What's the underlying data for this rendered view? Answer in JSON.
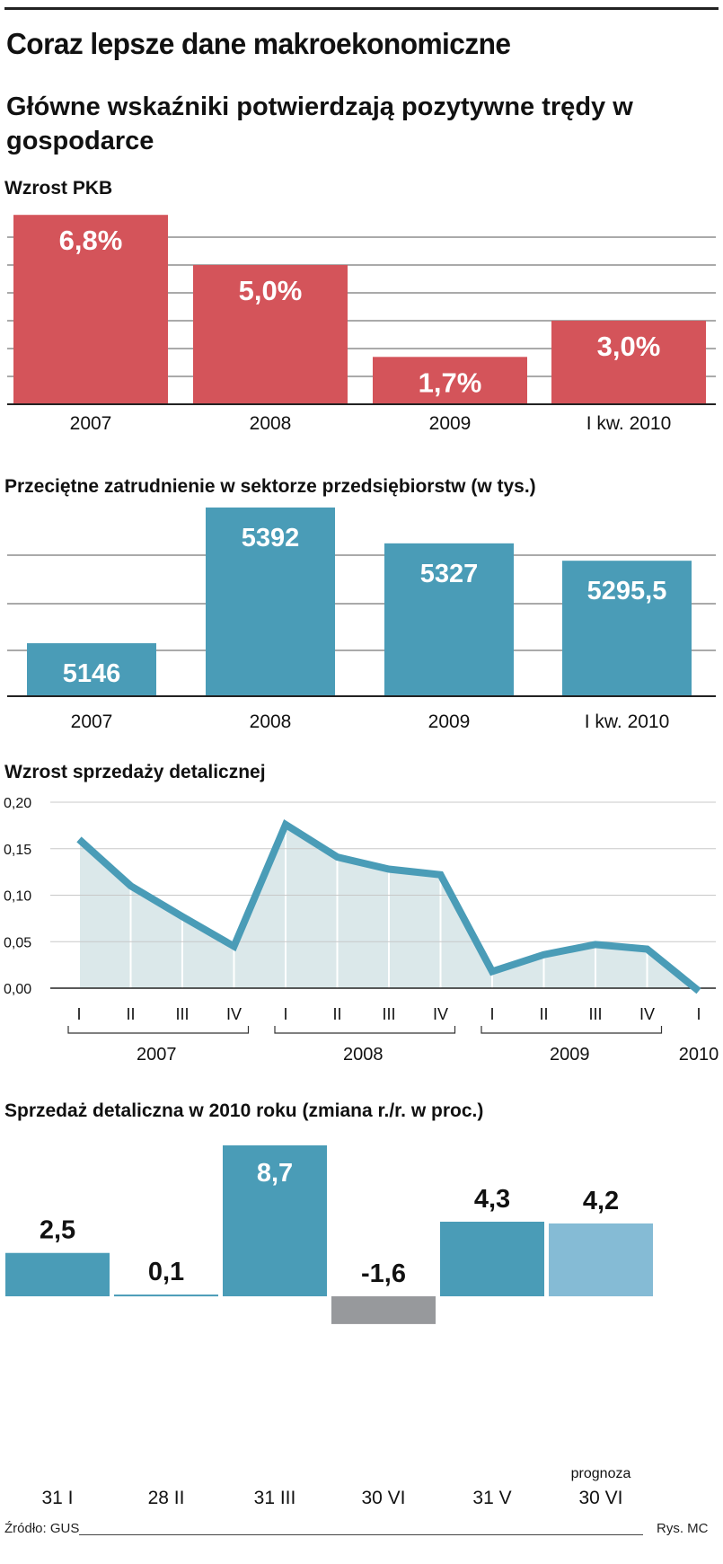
{
  "title": "Coraz lepsze dane makroekonomiczne",
  "subtitle": "Główne wskaźniki potwierdzają pozytywne trędy w gospodarce",
  "source": "Źródło: GUS",
  "credit": "Rys. MC",
  "colors": {
    "red": "#d4545a",
    "teal": "#4a9cb7",
    "light_blue": "#85bbd5",
    "gray": "#97999c",
    "area_fill": "#dbe8ea"
  },
  "chart_data": [
    {
      "type": "bar",
      "title": "Wzrost PKB",
      "categories": [
        "2007",
        "2008",
        "2009",
        "I kw. 2010"
      ],
      "values": [
        6.8,
        5.0,
        1.7,
        3.0
      ],
      "labels": [
        "6,8%",
        "5,0%",
        "1,7%",
        "3,0%"
      ],
      "ylim": [
        0,
        7
      ],
      "grid": true
    },
    {
      "type": "bar",
      "title": "Przeciętne zatrudnienie w sektorze przedsiębiorstw (w tys.)",
      "categories": [
        "2007",
        "2008",
        "2009",
        "I kw. 2010"
      ],
      "values": [
        5146,
        5392,
        5327,
        5295.5
      ],
      "labels": [
        "5146",
        "5392",
        "5327",
        "5295,5"
      ],
      "ylim": [
        5050,
        5400
      ],
      "grid": true
    },
    {
      "type": "area",
      "title": "Wzrost sprzedaży detalicznej",
      "x": [
        "I",
        "II",
        "III",
        "IV",
        "I",
        "II",
        "III",
        "IV",
        "I",
        "II",
        "III",
        "IV",
        "I"
      ],
      "years": [
        {
          "label": "2007",
          "start": 0,
          "end": 3
        },
        {
          "label": "2008",
          "start": 4,
          "end": 7
        },
        {
          "label": "2009",
          "start": 8,
          "end": 11
        },
        {
          "label": "2010",
          "start": 12,
          "end": 12
        }
      ],
      "values": [
        0.16,
        0.11,
        0.077,
        0.045,
        0.176,
        0.141,
        0.128,
        0.122,
        0.018,
        0.036,
        0.047,
        0.042,
        -0.003
      ],
      "yticks": [
        0.0,
        0.05,
        0.1,
        0.15,
        0.2
      ],
      "ytick_labels": [
        "0,00",
        "0,05",
        "0,10",
        "0,15",
        "0,20"
      ],
      "ylim": [
        0,
        0.2
      ],
      "grid": true
    },
    {
      "type": "bar",
      "title": "Sprzedaż detaliczna w 2010 roku (zmiana r./r. w proc.)",
      "categories": [
        "31 I",
        "28 II",
        "31 III",
        "30 VI",
        "31 V",
        "30 VI"
      ],
      "values": [
        2.5,
        0.1,
        8.7,
        -1.6,
        4.3,
        4.2
      ],
      "labels": [
        "2,5",
        "0,1",
        "8,7",
        "-1,6",
        "4,3",
        "4,2"
      ],
      "forecast_note": "prognoza",
      "forecast_index": 5,
      "ylim": [
        -1.6,
        8.7
      ]
    }
  ]
}
